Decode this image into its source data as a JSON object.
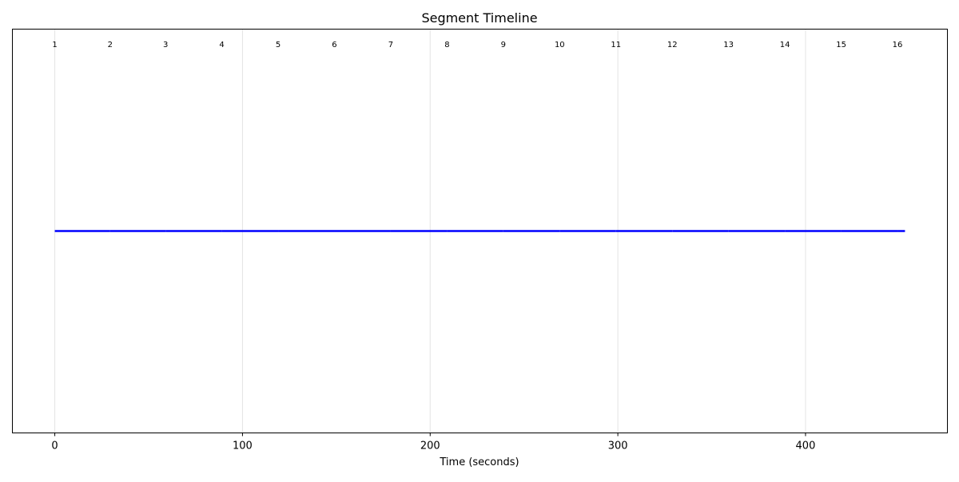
{
  "chart_data": {
    "type": "line",
    "title": "Segment Timeline",
    "xlabel": "Time (seconds)",
    "ylabel": "",
    "xlim": [
      -22.6,
      475.6
    ],
    "ylim": [
      0,
      1
    ],
    "xticks": [
      0,
      100,
      200,
      300,
      400
    ],
    "xtick_labels": [
      "0",
      "100",
      "200",
      "300",
      "400"
    ],
    "grid": "x",
    "line_y": 0.5,
    "series_color": "#0000ff",
    "segments": [
      {
        "label": "1",
        "start": 0
      },
      {
        "label": "2",
        "start": 29.5
      },
      {
        "label": "3",
        "start": 59
      },
      {
        "label": "4",
        "start": 89
      },
      {
        "label": "5",
        "start": 119
      },
      {
        "label": "6",
        "start": 149
      },
      {
        "label": "7",
        "start": 179
      },
      {
        "label": "8",
        "start": 209
      },
      {
        "label": "9",
        "start": 239
      },
      {
        "label": "10",
        "start": 269
      },
      {
        "label": "11",
        "start": 299
      },
      {
        "label": "12",
        "start": 329
      },
      {
        "label": "13",
        "start": 359
      },
      {
        "label": "14",
        "start": 389
      },
      {
        "label": "15",
        "start": 419
      },
      {
        "label": "16",
        "start": 449
      }
    ],
    "end": 453
  }
}
